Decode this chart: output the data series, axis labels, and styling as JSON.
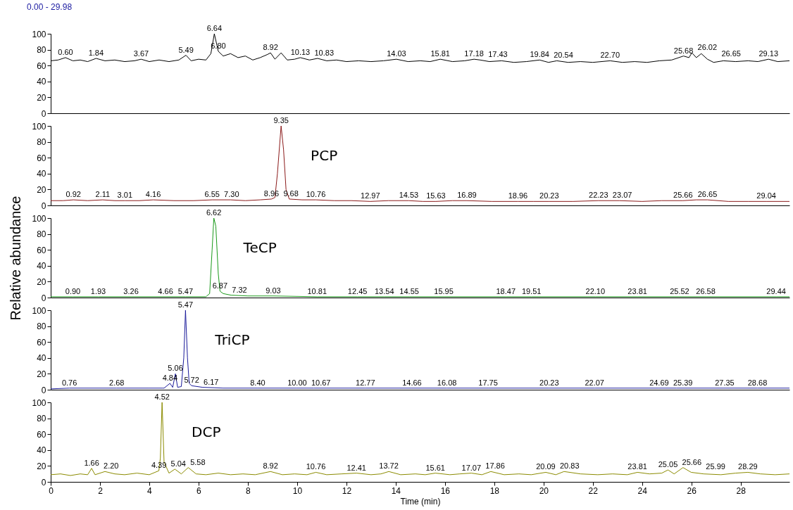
{
  "chart_data": [
    {
      "type": "line",
      "title": "0.00 - 29.98",
      "x": [
        0,
        0.3,
        0.6,
        0.9,
        1.2,
        1.5,
        1.84,
        2.2,
        2.6,
        3.0,
        3.4,
        3.67,
        4.0,
        4.4,
        4.8,
        5.2,
        5.49,
        5.7,
        6.0,
        6.3,
        6.5,
        6.64,
        6.75,
        6.8,
        7.0,
        7.3,
        7.6,
        7.9,
        8.2,
        8.5,
        8.8,
        8.92,
        9.1,
        9.35,
        9.6,
        9.9,
        10.13,
        10.5,
        10.83,
        11.2,
        11.6,
        12,
        12.5,
        13,
        13.5,
        14.03,
        14.5,
        15,
        15.4,
        15.81,
        16.3,
        16.8,
        17.18,
        17.43,
        17.8,
        18.3,
        18.8,
        19.3,
        19.84,
        20.2,
        20.54,
        21,
        21.5,
        22,
        22.7,
        23.2,
        23.7,
        24.2,
        24.7,
        25.2,
        25.68,
        25.9,
        26.02,
        26.2,
        26.4,
        26.65,
        26.9,
        27.3,
        27.8,
        28.3,
        28.7,
        29.13,
        29.5,
        29.98
      ],
      "series": [
        {
          "color": "#000000",
          "values": [
            66,
            67,
            70,
            66,
            67,
            65,
            69,
            66,
            67,
            65,
            66,
            68,
            65,
            67,
            65,
            67,
            73,
            66,
            68,
            67,
            75,
            100,
            85,
            78,
            72,
            75,
            70,
            72,
            67,
            70,
            74,
            76,
            68,
            76,
            67,
            68,
            70,
            67,
            69,
            66,
            67,
            65,
            66,
            65,
            66,
            68,
            65,
            66,
            65,
            68,
            65,
            66,
            68,
            67,
            65,
            66,
            64,
            65,
            67,
            64,
            66,
            64,
            65,
            64,
            66,
            64,
            65,
            64,
            66,
            67,
            72,
            70,
            76,
            70,
            75,
            68,
            64,
            66,
            65,
            66,
            65,
            68,
            65,
            66
          ]
        }
      ],
      "annotations": [
        {
          "text": "0.60",
          "x": 0.6,
          "y": 70
        },
        {
          "text": "1.84",
          "x": 1.84,
          "y": 69
        },
        {
          "text": "3.67",
          "x": 3.67,
          "y": 68
        },
        {
          "text": "5.49",
          "x": 5.49,
          "y": 73
        },
        {
          "text": "6.64",
          "x": 6.64,
          "y": 100
        },
        {
          "text": "6.80",
          "x": 6.8,
          "y": 78
        },
        {
          "text": "8.92",
          "x": 8.92,
          "y": 76
        },
        {
          "text": "10.13",
          "x": 10.13,
          "y": 70
        },
        {
          "text": "10.83",
          "x": 10.83,
          "y": 69
        },
        {
          "text": "14.03",
          "x": 14.03,
          "y": 68
        },
        {
          "text": "15.81",
          "x": 15.81,
          "y": 68
        },
        {
          "text": "17.18",
          "x": 17.18,
          "y": 68
        },
        {
          "text": "17.43",
          "x": 17.43,
          "y": 67
        },
        {
          "text": "19.84",
          "x": 19.84,
          "y": 67
        },
        {
          "text": "20.54",
          "x": 20.54,
          "y": 66
        },
        {
          "text": "22.70",
          "x": 22.7,
          "y": 66
        },
        {
          "text": "25.68",
          "x": 25.68,
          "y": 72
        },
        {
          "text": "26.02",
          "x": 26.02,
          "y": 76
        },
        {
          "text": "26.65",
          "x": 26.65,
          "y": 68
        },
        {
          "text": "29.13",
          "x": 29.13,
          "y": 68
        }
      ],
      "xlim": [
        0,
        29.98
      ],
      "xticks": [
        0,
        2,
        4,
        6,
        8,
        10,
        12,
        14,
        16,
        18,
        20,
        22,
        24,
        26,
        28
      ],
      "ylim": [
        0,
        100
      ],
      "yticks": [
        0,
        20,
        40,
        60,
        80,
        100
      ],
      "tick_labels": "y",
      "grid": false
    },
    {
      "type": "line",
      "x": [
        0,
        0.5,
        0.92,
        1.5,
        2.11,
        2.6,
        3.01,
        3.6,
        4.16,
        5,
        5.8,
        6.55,
        7.3,
        7.9,
        8.5,
        8.96,
        9.1,
        9.2,
        9.35,
        9.45,
        9.55,
        9.68,
        10.2,
        10.76,
        11.5,
        12.2,
        12.97,
        13.7,
        14.53,
        15.1,
        15.63,
        16.3,
        16.89,
        17.9,
        18.96,
        19.6,
        20.23,
        21.2,
        22.23,
        23.07,
        24,
        24.8,
        25.66,
        26.2,
        26.65,
        27.5,
        28.3,
        29.04,
        29.98
      ],
      "series": [
        {
          "name": "PCP",
          "color": "#8b1a1a",
          "values": [
            6,
            6,
            7,
            6,
            7,
            6,
            6,
            6,
            7,
            6,
            6,
            7,
            7,
            6,
            7,
            8,
            10,
            40,
            100,
            70,
            20,
            8,
            7,
            7,
            6,
            6,
            5,
            6,
            6,
            5,
            5,
            6,
            6,
            5,
            5,
            5,
            5,
            5,
            6,
            6,
            5,
            6,
            6,
            7,
            7,
            5,
            5,
            5,
            5
          ]
        }
      ],
      "annotations": [
        {
          "text": "0.92",
          "x": 0.92,
          "y": 7
        },
        {
          "text": "2.11",
          "x": 2.11,
          "y": 7
        },
        {
          "text": "3.01",
          "x": 3.01,
          "y": 6
        },
        {
          "text": "4.16",
          "x": 4.16,
          "y": 7
        },
        {
          "text": "6.55",
          "x": 6.55,
          "y": 7
        },
        {
          "text": "7.30",
          "x": 7.3,
          "y": 7
        },
        {
          "text": "8.96",
          "x": 8.96,
          "y": 8
        },
        {
          "text": "9.35",
          "x": 9.35,
          "y": 100
        },
        {
          "text": "9.68",
          "x": 9.68,
          "y": 8
        },
        {
          "text": "10.76",
          "x": 10.76,
          "y": 7
        },
        {
          "text": "12.97",
          "x": 12.97,
          "y": 5
        },
        {
          "text": "14.53",
          "x": 14.53,
          "y": 6
        },
        {
          "text": "15.63",
          "x": 15.63,
          "y": 5
        },
        {
          "text": "16.89",
          "x": 16.89,
          "y": 6
        },
        {
          "text": "18.96",
          "x": 18.96,
          "y": 5
        },
        {
          "text": "20.23",
          "x": 20.23,
          "y": 5
        },
        {
          "text": "22.23",
          "x": 22.23,
          "y": 6
        },
        {
          "text": "23.07",
          "x": 23.07,
          "y": 6
        },
        {
          "text": "25.66",
          "x": 25.66,
          "y": 6
        },
        {
          "text": "26.65",
          "x": 26.65,
          "y": 7
        },
        {
          "text": "29.04",
          "x": 29.04,
          "y": 5
        }
      ],
      "xlim": [
        0,
        29.98
      ],
      "xticks": [
        0,
        2,
        4,
        6,
        8,
        10,
        12,
        14,
        16,
        18,
        20,
        22,
        24,
        26,
        28
      ],
      "ylim": [
        0,
        100
      ],
      "yticks": [
        0,
        20,
        40,
        60,
        80,
        100
      ],
      "tick_labels": "y",
      "grid": false
    },
    {
      "type": "line",
      "x": [
        0,
        0.9,
        1.93,
        3.26,
        4.66,
        5.47,
        6.3,
        6.45,
        6.55,
        6.62,
        6.7,
        6.8,
        6.87,
        7.0,
        7.32,
        8,
        9.03,
        10.81,
        12.45,
        13.54,
        14.55,
        15.95,
        18.47,
        19.51,
        22.1,
        23.81,
        25.52,
        26.58,
        29.44,
        29.98
      ],
      "series": [
        {
          "name": "TeCP",
          "color": "#1a9a1a",
          "values": [
            1,
            1,
            1,
            1,
            1,
            1,
            1,
            5,
            60,
            100,
            90,
            30,
            8,
            5,
            3,
            2,
            2,
            1,
            1,
            1,
            1,
            1,
            1,
            1,
            1,
            1,
            1,
            1,
            1,
            1
          ]
        }
      ],
      "annotations": [
        {
          "text": "0.90",
          "x": 0.9,
          "y": 1
        },
        {
          "text": "1.93",
          "x": 1.93,
          "y": 1
        },
        {
          "text": "3.26",
          "x": 3.26,
          "y": 1
        },
        {
          "text": "4.66",
          "x": 4.66,
          "y": 1
        },
        {
          "text": "5.47",
          "x": 5.47,
          "y": 1
        },
        {
          "text": "6.62",
          "x": 6.62,
          "y": 100
        },
        {
          "text": "6.87",
          "x": 6.87,
          "y": 8
        },
        {
          "text": "7.32",
          "x": 7.32,
          "y": 3
        },
        {
          "text": "9.03",
          "x": 9.03,
          "y": 2
        },
        {
          "text": "10.81",
          "x": 10.81,
          "y": 1
        },
        {
          "text": "12.45",
          "x": 12.45,
          "y": 1
        },
        {
          "text": "13.54",
          "x": 13.54,
          "y": 1
        },
        {
          "text": "14.55",
          "x": 14.55,
          "y": 1
        },
        {
          "text": "15.95",
          "x": 15.95,
          "y": 1
        },
        {
          "text": "18.47",
          "x": 18.47,
          "y": 1
        },
        {
          "text": "19.51",
          "x": 19.51,
          "y": 1
        },
        {
          "text": "22.10",
          "x": 22.1,
          "y": 1
        },
        {
          "text": "23.81",
          "x": 23.81,
          "y": 1
        },
        {
          "text": "25.52",
          "x": 25.52,
          "y": 1
        },
        {
          "text": "26.58",
          "x": 26.58,
          "y": 1
        },
        {
          "text": "29.44",
          "x": 29.44,
          "y": 1
        }
      ],
      "ylabel": "Relative abundance",
      "xlim": [
        0,
        29.98
      ],
      "xticks": [
        0,
        2,
        4,
        6,
        8,
        10,
        12,
        14,
        16,
        18,
        20,
        22,
        24,
        26,
        28
      ],
      "ylim": [
        0,
        100
      ],
      "yticks": [
        0,
        20,
        40,
        60,
        80,
        100
      ],
      "tick_labels": "y",
      "grid": false
    },
    {
      "type": "line",
      "x": [
        0,
        0.76,
        2.68,
        4.0,
        4.52,
        4.6,
        4.84,
        4.95,
        5.06,
        5.15,
        5.3,
        5.4,
        5.47,
        5.55,
        5.62,
        5.72,
        6.17,
        7,
        8.4,
        10,
        10.67,
        12.77,
        14.66,
        16.08,
        17.75,
        20.23,
        22.07,
        24.69,
        25.39,
        27.35,
        28.68,
        29.98
      ],
      "series": [
        {
          "name": "TriCP",
          "color": "#1a1a9a",
          "values": [
            1,
            2,
            2,
            2,
            2,
            2,
            8,
            3,
            20,
            3,
            4,
            40,
            100,
            40,
            8,
            5,
            3,
            2,
            2,
            2,
            2,
            2,
            2,
            2,
            2,
            2,
            2,
            2,
            2,
            2,
            2,
            2
          ]
        }
      ],
      "annotations": [
        {
          "text": "0.76",
          "x": 0.76,
          "y": 2
        },
        {
          "text": "2.68",
          "x": 2.68,
          "y": 2
        },
        {
          "text": "4.84",
          "x": 4.84,
          "y": 8
        },
        {
          "text": "5.06",
          "x": 5.06,
          "y": 20
        },
        {
          "text": "5.47",
          "x": 5.47,
          "y": 100
        },
        {
          "text": "5.72",
          "x": 5.72,
          "y": 5
        },
        {
          "text": "6.17",
          "x": 6.17,
          "y": 3
        },
        {
          "text": "8.40",
          "x": 8.4,
          "y": 2
        },
        {
          "text": "10.00",
          "x": 10,
          "y": 2
        },
        {
          "text": "10.67",
          "x": 10.67,
          "y": 2
        },
        {
          "text": "12.77",
          "x": 12.77,
          "y": 2
        },
        {
          "text": "14.66",
          "x": 14.66,
          "y": 2
        },
        {
          "text": "16.08",
          "x": 16.08,
          "y": 2
        },
        {
          "text": "17.75",
          "x": 17.75,
          "y": 2
        },
        {
          "text": "20.23",
          "x": 20.23,
          "y": 2
        },
        {
          "text": "22.07",
          "x": 22.07,
          "y": 2
        },
        {
          "text": "24.69",
          "x": 24.69,
          "y": 2
        },
        {
          "text": "25.39",
          "x": 25.39,
          "y": 2
        },
        {
          "text": "27.35",
          "x": 27.35,
          "y": 2
        },
        {
          "text": "28.68",
          "x": 28.68,
          "y": 2
        }
      ],
      "xlim": [
        0,
        29.98
      ],
      "xticks": [
        0,
        2,
        4,
        6,
        8,
        10,
        12,
        14,
        16,
        18,
        20,
        22,
        24,
        26,
        28
      ],
      "ylim": [
        0,
        100
      ],
      "yticks": [
        0,
        20,
        40,
        60,
        80,
        100
      ],
      "tick_labels": "y",
      "grid": false
    },
    {
      "type": "line",
      "x": [
        0,
        0.4,
        0.8,
        1.2,
        1.5,
        1.66,
        1.8,
        2.2,
        2.6,
        3.0,
        3.5,
        4.0,
        4.39,
        4.45,
        4.52,
        4.6,
        4.8,
        5.04,
        5.3,
        5.58,
        5.9,
        6.3,
        6.8,
        7.3,
        7.8,
        8.3,
        8.92,
        9.4,
        9.9,
        10.4,
        10.76,
        11.2,
        11.8,
        12.41,
        13.0,
        13.4,
        13.72,
        14.2,
        14.8,
        15.2,
        15.61,
        16.2,
        16.6,
        17.07,
        17.5,
        17.86,
        18.4,
        19.0,
        19.5,
        20.09,
        20.5,
        20.83,
        21.5,
        22.2,
        22.8,
        23.4,
        23.81,
        24.3,
        24.8,
        25.05,
        25.3,
        25.66,
        25.99,
        26.5,
        27.2,
        27.8,
        28.29,
        28.8,
        29.4,
        29.98
      ],
      "series": [
        {
          "name": "DCP",
          "color": "#8b8b00",
          "values": [
            9,
            10,
            8,
            10,
            9,
            17,
            9,
            13,
            10,
            9,
            11,
            9,
            14,
            30,
            100,
            25,
            11,
            16,
            10,
            18,
            10,
            9,
            11,
            9,
            10,
            9,
            13,
            9,
            10,
            9,
            12,
            9,
            10,
            11,
            9,
            10,
            13,
            9,
            10,
            9,
            11,
            9,
            10,
            11,
            9,
            13,
            9,
            10,
            9,
            12,
            9,
            13,
            10,
            9,
            10,
            9,
            12,
            10,
            11,
            15,
            10,
            18,
            12,
            10,
            9,
            11,
            12,
            10,
            9,
            10
          ]
        }
      ],
      "annotations": [
        {
          "text": "1.66",
          "x": 1.66,
          "y": 17
        },
        {
          "text": "2.20",
          "x": 2.2,
          "y": 13
        },
        {
          "text": "4.39",
          "x": 4.39,
          "y": 14
        },
        {
          "text": "4.52",
          "x": 4.52,
          "y": 100
        },
        {
          "text": "5.04",
          "x": 5.04,
          "y": 16
        },
        {
          "text": "5.58",
          "x": 5.58,
          "y": 18
        },
        {
          "text": "8.92",
          "x": 8.92,
          "y": 13
        },
        {
          "text": "10.76",
          "x": 10.76,
          "y": 12
        },
        {
          "text": "12.41",
          "x": 12.41,
          "y": 11
        },
        {
          "text": "13.72",
          "x": 13.72,
          "y": 13
        },
        {
          "text": "15.61",
          "x": 15.61,
          "y": 11
        },
        {
          "text": "17.07",
          "x": 17.07,
          "y": 11
        },
        {
          "text": "17.86",
          "x": 17.86,
          "y": 13
        },
        {
          "text": "20.09",
          "x": 20.09,
          "y": 12
        },
        {
          "text": "20.83",
          "x": 20.83,
          "y": 13
        },
        {
          "text": "23.81",
          "x": 23.81,
          "y": 12
        },
        {
          "text": "25.05",
          "x": 25.05,
          "y": 15
        },
        {
          "text": "25.66",
          "x": 25.66,
          "y": 18
        },
        {
          "text": "25.99",
          "x": 25.99,
          "y": 12
        },
        {
          "text": "28.29",
          "x": 28.29,
          "y": 12
        }
      ],
      "xlabel": "Time (min)",
      "xlim": [
        0,
        29.98
      ],
      "xticks": [
        0,
        2,
        4,
        6,
        8,
        10,
        12,
        14,
        16,
        18,
        20,
        22,
        24,
        26,
        28
      ],
      "ylim": [
        0,
        100
      ],
      "yticks": [
        0,
        20,
        40,
        60,
        80,
        100
      ],
      "grid": false
    }
  ]
}
